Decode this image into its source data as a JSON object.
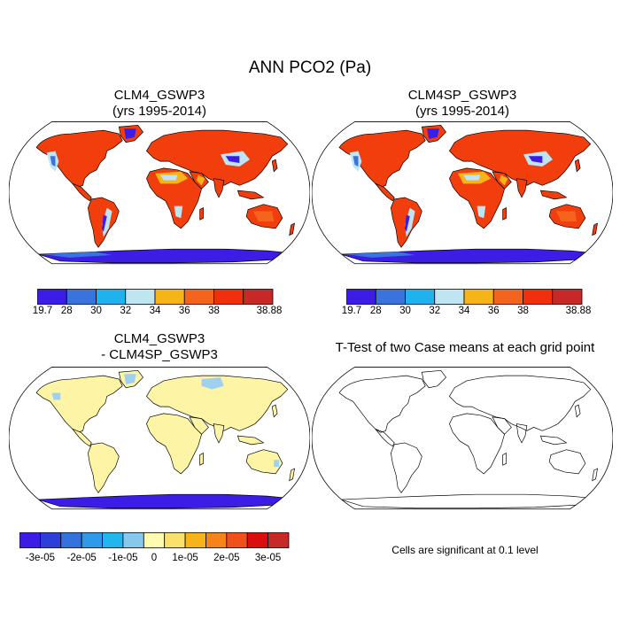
{
  "figure": {
    "title": "ANN PCO2 (Pa)"
  },
  "panels": [
    {
      "title_line1": "CLM4_GSWP3",
      "title_line2": "(yrs 1995-2014)",
      "style": "absolute"
    },
    {
      "title_line1": "CLM4SP_GSWP3",
      "title_line2": "(yrs 1995-2014)",
      "style": "absolute"
    },
    {
      "title_line1": "CLM4_GSWP3",
      "title_line2": "- CLM4SP_GSWP3",
      "style": "difference"
    },
    {
      "title_line1": "T-Test of two Case means at each grid point",
      "title_line2": "",
      "style": "outline",
      "note": "Cells are significant at 0.1 level"
    }
  ],
  "colorbars": {
    "absolute": {
      "colors": [
        "#3b1de6",
        "#3a73dd",
        "#1fb2ef",
        "#bfe4f2",
        "#f7b418",
        "#f4641d",
        "#f02f0c",
        "#c72a26"
      ],
      "labels": [
        "19.7",
        "28",
        "30",
        "32",
        "34",
        "36",
        "38",
        "38.88"
      ]
    },
    "difference": {
      "colors": [
        "#3b1de6",
        "#2d3fd9",
        "#3473de",
        "#2f99ea",
        "#21b6ee",
        "#87c8ef",
        "#fffbb0",
        "#fae06c",
        "#f7b418",
        "#f4841a",
        "#f2501a",
        "#db0e0e",
        "#c72a26"
      ],
      "labels": [
        "-3e-05",
        "-2e-05",
        "-1e-05",
        "0",
        "1e-05",
        "2e-05",
        "3e-05"
      ]
    }
  },
  "colors": {
    "land_high": "#f23e0c",
    "land_mid": "#f4641d",
    "land_warm": "#f7b418",
    "land_cool": "#bfe4f2",
    "land_cold": "#3a73dd",
    "land_min": "#3b1de6",
    "diff_land": "#fdf4a6",
    "diff_spots": "#9fd0ef",
    "antarctic": "#3b1de6",
    "outline": "#000000"
  }
}
